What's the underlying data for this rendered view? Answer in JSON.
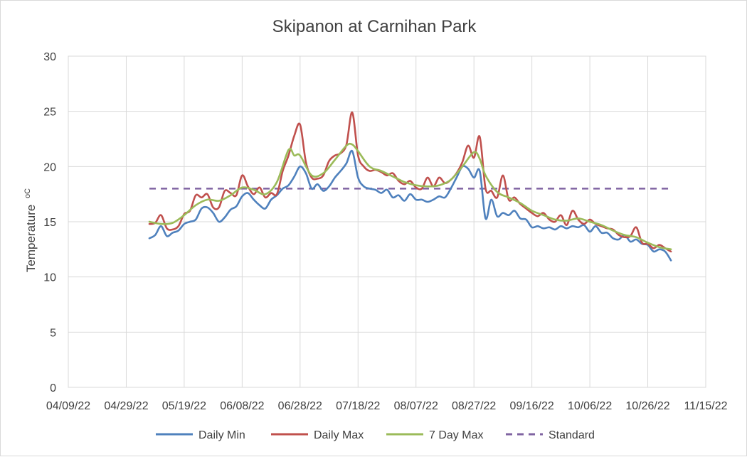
{
  "chart_data": {
    "type": "line",
    "title": "Skipanon at Carnihan Park",
    "ylabel": "Temperature",
    "ylabel_unit": "oC",
    "xlabel": "",
    "ylim": [
      0,
      30
    ],
    "yticks": [
      "0",
      "5",
      "10",
      "15",
      "20",
      "25",
      "30"
    ],
    "xlim": [
      "2022-04-09",
      "2022-11-15"
    ],
    "xticks": [
      "04/09/22",
      "04/29/22",
      "05/19/22",
      "06/08/22",
      "06/28/22",
      "07/18/22",
      "08/07/22",
      "08/27/22",
      "09/16/22",
      "10/06/22",
      "10/26/22",
      "11/15/22"
    ],
    "grid": "vertical and horizontal",
    "legend_position": "bottom",
    "series": [
      {
        "name": "Daily Min",
        "color": "#4f81bd",
        "points": [
          [
            "2022-05-07",
            13.5
          ],
          [
            "2022-05-09",
            13.8
          ],
          [
            "2022-05-11",
            14.6
          ],
          [
            "2022-05-13",
            13.7
          ],
          [
            "2022-05-15",
            14.0
          ],
          [
            "2022-05-17",
            14.2
          ],
          [
            "2022-05-19",
            14.8
          ],
          [
            "2022-05-21",
            15.0
          ],
          [
            "2022-05-23",
            15.2
          ],
          [
            "2022-05-25",
            16.2
          ],
          [
            "2022-05-27",
            16.3
          ],
          [
            "2022-05-29",
            15.8
          ],
          [
            "2022-05-31",
            15.0
          ],
          [
            "2022-06-02",
            15.4
          ],
          [
            "2022-06-04",
            16.1
          ],
          [
            "2022-06-06",
            16.4
          ],
          [
            "2022-06-08",
            17.3
          ],
          [
            "2022-06-10",
            17.6
          ],
          [
            "2022-06-12",
            17.0
          ],
          [
            "2022-06-14",
            16.5
          ],
          [
            "2022-06-16",
            16.2
          ],
          [
            "2022-06-18",
            17.0
          ],
          [
            "2022-06-20",
            17.4
          ],
          [
            "2022-06-22",
            18.0
          ],
          [
            "2022-06-24",
            18.3
          ],
          [
            "2022-06-26",
            19.1
          ],
          [
            "2022-06-28",
            20.0
          ],
          [
            "2022-06-30",
            19.4
          ],
          [
            "2022-07-02",
            18.0
          ],
          [
            "2022-07-04",
            18.4
          ],
          [
            "2022-07-06",
            17.8
          ],
          [
            "2022-07-08",
            18.2
          ],
          [
            "2022-07-10",
            19.0
          ],
          [
            "2022-07-12",
            19.6
          ],
          [
            "2022-07-14",
            20.3
          ],
          [
            "2022-07-16",
            21.4
          ],
          [
            "2022-07-18",
            19.0
          ],
          [
            "2022-07-20",
            18.2
          ],
          [
            "2022-07-22",
            18.0
          ],
          [
            "2022-07-24",
            17.9
          ],
          [
            "2022-07-26",
            17.6
          ],
          [
            "2022-07-28",
            17.9
          ],
          [
            "2022-07-30",
            17.2
          ],
          [
            "2022-08-01",
            17.4
          ],
          [
            "2022-08-03",
            16.9
          ],
          [
            "2022-08-05",
            17.5
          ],
          [
            "2022-08-07",
            17.0
          ],
          [
            "2022-08-09",
            17.0
          ],
          [
            "2022-08-11",
            16.8
          ],
          [
            "2022-08-13",
            17.0
          ],
          [
            "2022-08-15",
            17.3
          ],
          [
            "2022-08-17",
            17.2
          ],
          [
            "2022-08-19",
            18.0
          ],
          [
            "2022-08-21",
            19.0
          ],
          [
            "2022-08-23",
            20.0
          ],
          [
            "2022-08-25",
            19.8
          ],
          [
            "2022-08-27",
            19.0
          ],
          [
            "2022-08-29",
            19.6
          ],
          [
            "2022-08-31",
            15.3
          ],
          [
            "2022-09-02",
            17.0
          ],
          [
            "2022-09-04",
            15.5
          ],
          [
            "2022-09-06",
            15.8
          ],
          [
            "2022-09-08",
            15.6
          ],
          [
            "2022-09-10",
            16.0
          ],
          [
            "2022-09-12",
            15.3
          ],
          [
            "2022-09-14",
            15.2
          ],
          [
            "2022-09-16",
            14.5
          ],
          [
            "2022-09-18",
            14.6
          ],
          [
            "2022-09-20",
            14.4
          ],
          [
            "2022-09-22",
            14.5
          ],
          [
            "2022-09-24",
            14.3
          ],
          [
            "2022-09-26",
            14.6
          ],
          [
            "2022-09-28",
            14.4
          ],
          [
            "2022-09-30",
            14.6
          ],
          [
            "2022-10-02",
            14.5
          ],
          [
            "2022-10-04",
            14.7
          ],
          [
            "2022-10-06",
            14.1
          ],
          [
            "2022-10-08",
            14.6
          ],
          [
            "2022-10-10",
            14.0
          ],
          [
            "2022-10-12",
            14.0
          ],
          [
            "2022-10-14",
            13.5
          ],
          [
            "2022-10-16",
            13.4
          ],
          [
            "2022-10-18",
            13.8
          ],
          [
            "2022-10-20",
            13.2
          ],
          [
            "2022-10-22",
            13.4
          ],
          [
            "2022-10-24",
            13.0
          ],
          [
            "2022-10-26",
            12.9
          ],
          [
            "2022-10-28",
            12.3
          ],
          [
            "2022-10-30",
            12.5
          ],
          [
            "2022-11-01",
            12.3
          ],
          [
            "2022-11-03",
            11.5
          ]
        ]
      },
      {
        "name": "Daily Max",
        "color": "#c0504d",
        "points": [
          [
            "2022-05-07",
            14.8
          ],
          [
            "2022-05-09",
            14.9
          ],
          [
            "2022-05-11",
            15.6
          ],
          [
            "2022-05-13",
            14.4
          ],
          [
            "2022-05-15",
            14.3
          ],
          [
            "2022-05-17",
            14.6
          ],
          [
            "2022-05-19",
            15.7
          ],
          [
            "2022-05-21",
            16.0
          ],
          [
            "2022-05-23",
            17.4
          ],
          [
            "2022-05-25",
            17.2
          ],
          [
            "2022-05-27",
            17.5
          ],
          [
            "2022-05-29",
            16.3
          ],
          [
            "2022-05-31",
            16.3
          ],
          [
            "2022-06-02",
            17.8
          ],
          [
            "2022-06-04",
            17.6
          ],
          [
            "2022-06-06",
            17.4
          ],
          [
            "2022-06-08",
            19.2
          ],
          [
            "2022-06-10",
            18.2
          ],
          [
            "2022-06-12",
            17.5
          ],
          [
            "2022-06-14",
            18.1
          ],
          [
            "2022-06-16",
            17.2
          ],
          [
            "2022-06-18",
            17.6
          ],
          [
            "2022-06-20",
            17.5
          ],
          [
            "2022-06-22",
            19.6
          ],
          [
            "2022-06-24",
            21.0
          ],
          [
            "2022-06-26",
            22.8
          ],
          [
            "2022-06-28",
            23.8
          ],
          [
            "2022-06-30",
            20.4
          ],
          [
            "2022-07-02",
            19.0
          ],
          [
            "2022-07-04",
            18.9
          ],
          [
            "2022-07-06",
            19.2
          ],
          [
            "2022-07-08",
            20.5
          ],
          [
            "2022-07-10",
            21.0
          ],
          [
            "2022-07-12",
            21.2
          ],
          [
            "2022-07-14",
            22.0
          ],
          [
            "2022-07-16",
            24.9
          ],
          [
            "2022-07-18",
            21.0
          ],
          [
            "2022-07-20",
            20.0
          ],
          [
            "2022-07-22",
            19.6
          ],
          [
            "2022-07-24",
            19.7
          ],
          [
            "2022-07-26",
            19.5
          ],
          [
            "2022-07-28",
            19.2
          ],
          [
            "2022-07-30",
            19.4
          ],
          [
            "2022-08-01",
            18.7
          ],
          [
            "2022-08-03",
            18.4
          ],
          [
            "2022-08-05",
            18.7
          ],
          [
            "2022-08-07",
            18.1
          ],
          [
            "2022-08-09",
            18.0
          ],
          [
            "2022-08-11",
            19.0
          ],
          [
            "2022-08-13",
            18.2
          ],
          [
            "2022-08-15",
            19.0
          ],
          [
            "2022-08-17",
            18.5
          ],
          [
            "2022-08-19",
            18.8
          ],
          [
            "2022-08-21",
            19.4
          ],
          [
            "2022-08-23",
            20.4
          ],
          [
            "2022-08-25",
            21.9
          ],
          [
            "2022-08-27",
            20.8
          ],
          [
            "2022-08-29",
            22.7
          ],
          [
            "2022-08-31",
            18.0
          ],
          [
            "2022-09-02",
            17.8
          ],
          [
            "2022-09-04",
            17.2
          ],
          [
            "2022-09-06",
            19.2
          ],
          [
            "2022-09-08",
            17.0
          ],
          [
            "2022-09-10",
            17.2
          ],
          [
            "2022-09-12",
            16.6
          ],
          [
            "2022-09-14",
            16.2
          ],
          [
            "2022-09-16",
            15.8
          ],
          [
            "2022-09-18",
            15.5
          ],
          [
            "2022-09-20",
            15.8
          ],
          [
            "2022-09-22",
            15.2
          ],
          [
            "2022-09-24",
            15.0
          ],
          [
            "2022-09-26",
            15.6
          ],
          [
            "2022-09-28",
            14.7
          ],
          [
            "2022-09-30",
            16.0
          ],
          [
            "2022-10-02",
            15.2
          ],
          [
            "2022-10-04",
            14.8
          ],
          [
            "2022-10-06",
            15.2
          ],
          [
            "2022-10-08",
            14.8
          ],
          [
            "2022-10-10",
            14.6
          ],
          [
            "2022-10-12",
            14.4
          ],
          [
            "2022-10-14",
            14.3
          ],
          [
            "2022-10-16",
            13.8
          ],
          [
            "2022-10-18",
            13.6
          ],
          [
            "2022-10-20",
            13.7
          ],
          [
            "2022-10-22",
            14.5
          ],
          [
            "2022-10-24",
            13.1
          ],
          [
            "2022-10-26",
            13.0
          ],
          [
            "2022-10-28",
            12.6
          ],
          [
            "2022-10-30",
            12.9
          ],
          [
            "2022-11-01",
            12.6
          ],
          [
            "2022-11-03",
            12.3
          ]
        ]
      },
      {
        "name": "7 Day Max",
        "color": "#9bbb59",
        "points": [
          [
            "2022-05-07",
            15.0
          ],
          [
            "2022-05-11",
            14.8
          ],
          [
            "2022-05-15",
            14.9
          ],
          [
            "2022-05-19",
            15.6
          ],
          [
            "2022-05-23",
            16.5
          ],
          [
            "2022-05-27",
            17.0
          ],
          [
            "2022-05-31",
            16.9
          ],
          [
            "2022-06-04",
            17.4
          ],
          [
            "2022-06-08",
            18.1
          ],
          [
            "2022-06-12",
            17.9
          ],
          [
            "2022-06-16",
            17.5
          ],
          [
            "2022-06-20",
            18.6
          ],
          [
            "2022-06-24",
            21.5
          ],
          [
            "2022-06-26",
            21.0
          ],
          [
            "2022-06-28",
            21.0
          ],
          [
            "2022-07-02",
            19.2
          ],
          [
            "2022-07-06",
            19.4
          ],
          [
            "2022-07-10",
            20.6
          ],
          [
            "2022-07-14",
            21.9
          ],
          [
            "2022-07-16",
            22.0
          ],
          [
            "2022-07-18",
            21.4
          ],
          [
            "2022-07-22",
            20.0
          ],
          [
            "2022-07-26",
            19.6
          ],
          [
            "2022-07-30",
            19.1
          ],
          [
            "2022-08-03",
            18.6
          ],
          [
            "2022-08-07",
            18.3
          ],
          [
            "2022-08-11",
            18.2
          ],
          [
            "2022-08-15",
            18.3
          ],
          [
            "2022-08-19",
            18.8
          ],
          [
            "2022-08-23",
            20.0
          ],
          [
            "2022-08-27",
            21.3
          ],
          [
            "2022-08-29",
            20.7
          ],
          [
            "2022-08-31",
            19.2
          ],
          [
            "2022-09-04",
            17.7
          ],
          [
            "2022-09-08",
            17.2
          ],
          [
            "2022-09-12",
            16.7
          ],
          [
            "2022-09-16",
            16.0
          ],
          [
            "2022-09-20",
            15.6
          ],
          [
            "2022-09-24",
            15.2
          ],
          [
            "2022-09-28",
            15.1
          ],
          [
            "2022-10-02",
            15.3
          ],
          [
            "2022-10-06",
            15.0
          ],
          [
            "2022-10-10",
            14.7
          ],
          [
            "2022-10-14",
            14.2
          ],
          [
            "2022-10-18",
            13.8
          ],
          [
            "2022-10-22",
            13.6
          ],
          [
            "2022-10-26",
            13.1
          ],
          [
            "2022-10-30",
            12.7
          ],
          [
            "2022-11-03",
            12.5
          ]
        ]
      },
      {
        "name": "Standard",
        "color": "#8064a2",
        "dashed": true,
        "points": [
          [
            "2022-05-07",
            18
          ],
          [
            "2022-11-03",
            18
          ]
        ]
      }
    ]
  }
}
